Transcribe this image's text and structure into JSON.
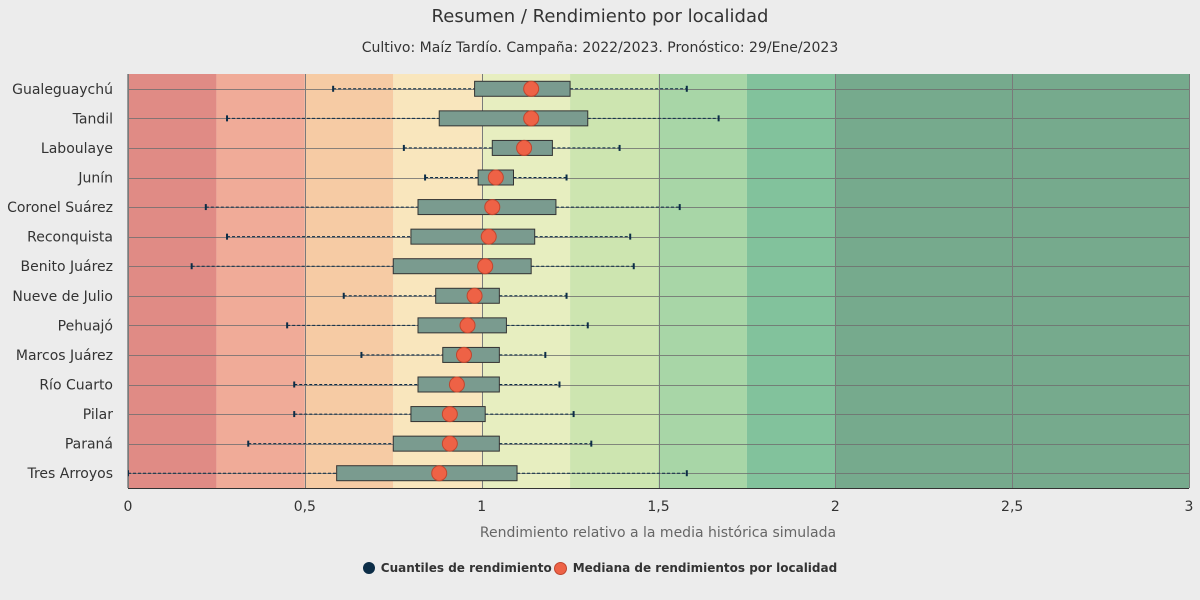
{
  "chart_data": {
    "type": "boxplot",
    "title": "Resumen / Rendimiento por localidad",
    "subtitle": "Cultivo: Maíz Tardío. Campaña: 2022/2023. Pronóstico: 29/Ene/2023",
    "xlabel": "Rendimiento relativo a la media histórica simulada",
    "xlim": [
      0,
      3
    ],
    "xticks": [
      0,
      0.5,
      1,
      1.5,
      2,
      2.5,
      3
    ],
    "xtick_labels": [
      "0",
      "0,5",
      "1",
      "1,5",
      "2",
      "2,5",
      "3"
    ],
    "grid": true,
    "legend_position": "bottom",
    "bands": [
      {
        "from": 0,
        "to": 0.25,
        "color": "#e08b85"
      },
      {
        "from": 0.25,
        "to": 0.5,
        "color": "#f0ab98"
      },
      {
        "from": 0.5,
        "to": 0.75,
        "color": "#f6cba4"
      },
      {
        "from": 0.75,
        "to": 1,
        "color": "#f9e6bd"
      },
      {
        "from": 1,
        "to": 1.25,
        "color": "#e7eec0"
      },
      {
        "from": 1.25,
        "to": 1.5,
        "color": "#cde5b0"
      },
      {
        "from": 1.5,
        "to": 1.75,
        "color": "#a8d6a7"
      },
      {
        "from": 1.75,
        "to": 2,
        "color": "#82c29c"
      },
      {
        "from": 2,
        "to": 3,
        "color": "#76aa8d"
      }
    ],
    "colors": {
      "box": "#7a9b8f",
      "box_stroke": "#333333",
      "whisker": "#0c2d47",
      "median": "#ee6246",
      "median_stroke": "#c0462f"
    },
    "categories": [
      "Gualeguaychú",
      "Tandil",
      "Laboulaye",
      "Junín",
      "Coronel Suárez",
      "Reconquista",
      "Benito Juárez",
      "Nueve de Julio",
      "Pehuajó",
      "Marcos Juárez",
      "Río Cuarto",
      "Pilar",
      "Paraná",
      "Tres Arroyos"
    ],
    "series": [
      {
        "name": "Cuantiles de rendimiento",
        "boxes": [
          {
            "min": 0.58,
            "q1": 0.98,
            "q3": 1.25,
            "max": 1.58
          },
          {
            "min": 0.28,
            "q1": 0.88,
            "q3": 1.3,
            "max": 1.67
          },
          {
            "min": 0.78,
            "q1": 1.03,
            "q3": 1.2,
            "max": 1.39
          },
          {
            "min": 0.84,
            "q1": 0.99,
            "q3": 1.09,
            "max": 1.24
          },
          {
            "min": 0.22,
            "q1": 0.82,
            "q3": 1.21,
            "max": 1.56
          },
          {
            "min": 0.28,
            "q1": 0.8,
            "q3": 1.15,
            "max": 1.42
          },
          {
            "min": 0.18,
            "q1": 0.75,
            "q3": 1.14,
            "max": 1.43
          },
          {
            "min": 0.61,
            "q1": 0.87,
            "q3": 1.05,
            "max": 1.24
          },
          {
            "min": 0.45,
            "q1": 0.82,
            "q3": 1.07,
            "max": 1.3
          },
          {
            "min": 0.66,
            "q1": 0.89,
            "q3": 1.05,
            "max": 1.18
          },
          {
            "min": 0.47,
            "q1": 0.82,
            "q3": 1.05,
            "max": 1.22
          },
          {
            "min": 0.47,
            "q1": 0.8,
            "q3": 1.01,
            "max": 1.26
          },
          {
            "min": 0.34,
            "q1": 0.75,
            "q3": 1.05,
            "max": 1.31
          },
          {
            "min": 0.0,
            "q1": 0.59,
            "q3": 1.1,
            "max": 1.58
          }
        ]
      },
      {
        "name": "Mediana de rendimientos por localidad",
        "values": [
          1.14,
          1.14,
          1.12,
          1.04,
          1.03,
          1.02,
          1.01,
          0.98,
          0.96,
          0.95,
          0.93,
          0.91,
          0.91,
          0.88
        ]
      }
    ]
  }
}
